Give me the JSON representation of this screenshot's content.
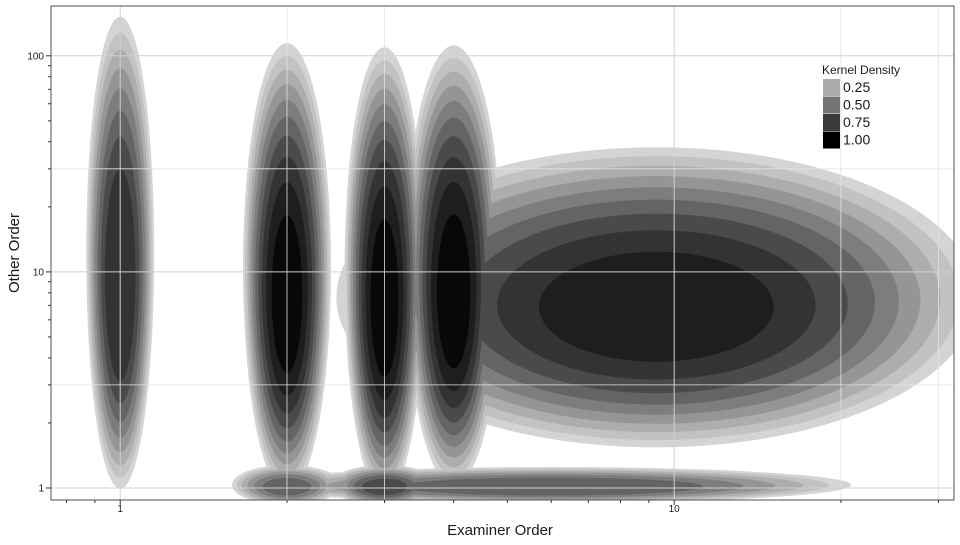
{
  "chart_data": {
    "type": "heatmap",
    "subtype": "filled-contour",
    "title": "",
    "xlabel": "Examiner Order",
    "ylabel": "Other Order",
    "x_scale": "log",
    "y_scale": "log",
    "xlim": [
      0.75,
      32
    ],
    "ylim": [
      0.88,
      170
    ],
    "x_ticks": [
      {
        "value": 1,
        "label": "1"
      },
      {
        "value": 10,
        "label": "10"
      }
    ],
    "y_ticks": [
      {
        "value": 1,
        "label": "1"
      },
      {
        "value": 10,
        "label": "10"
      },
      {
        "value": 100,
        "label": "100"
      }
    ],
    "grid": true,
    "legend": {
      "title": "Kernel Density",
      "position": "top-right",
      "entries": [
        {
          "label": "0.25",
          "color": "#ababab"
        },
        {
          "label": "0.50",
          "color": "#747474"
        },
        {
          "label": "0.75",
          "color": "#3a3a3a"
        },
        {
          "label": "1.00",
          "color": "#000000"
        }
      ]
    },
    "color_levels": [
      "#d4d4d4",
      "#c2c2c2",
      "#adadad",
      "#959595",
      "#7d7d7d",
      "#646464",
      "#4a4a4a",
      "#333333",
      "#1e1e1e",
      "#080808"
    ],
    "density_clusters": [
      {
        "x": 1,
        "y": 8,
        "peak": 0.85
      },
      {
        "x": 2,
        "y": 6.8,
        "peak": 1.0
      },
      {
        "x": 3,
        "y": 6.5,
        "peak": 1.0
      },
      {
        "x": 4,
        "y": 7,
        "peak": 1.0
      },
      {
        "x": 6,
        "y": 6.5,
        "peak": 0.9
      },
      {
        "x": 2,
        "y": 1,
        "peak": 0.6
      },
      {
        "x": 3,
        "y": 1,
        "peak": 0.7
      },
      {
        "x": 6,
        "y": 1,
        "peak": 0.65
      }
    ]
  }
}
